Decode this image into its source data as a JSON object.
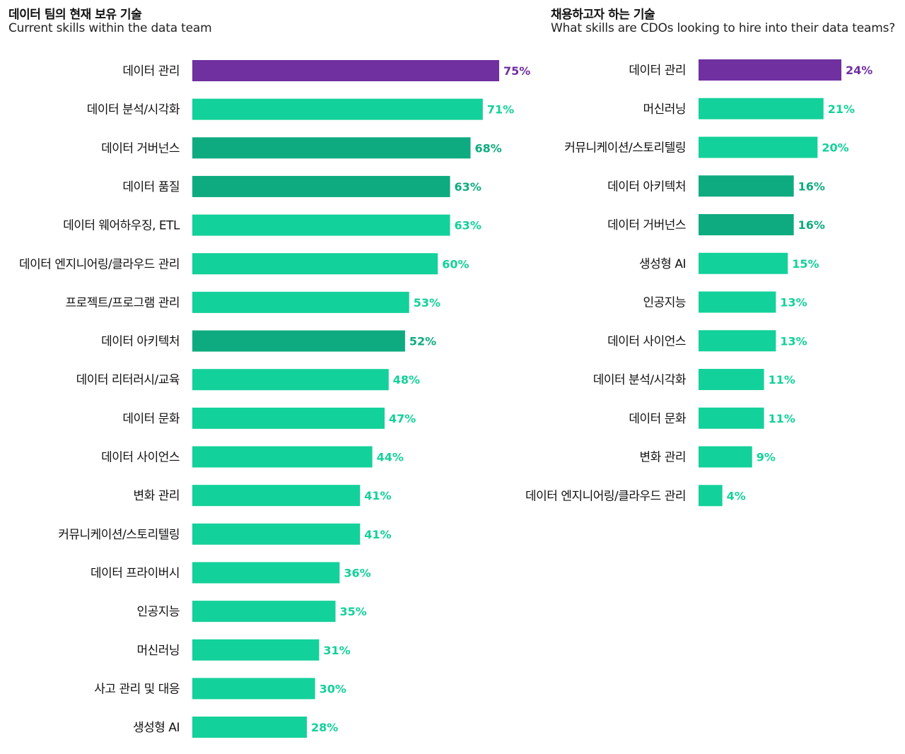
{
  "colors": {
    "highlight": "#7030a0",
    "default": "#13d19a",
    "dark": "#0fab80"
  },
  "left": {
    "title": "데이터 팀의 현재 보유 기술",
    "subtitle": "Current skills within the data team"
  },
  "right": {
    "title": "채용하고자 하는 기술",
    "subtitle": "What skills are CDOs looking to hire into their data teams?"
  },
  "chart_data": [
    {
      "type": "bar",
      "orientation": "horizontal",
      "title": "데이터 팀의 현재 보유 기술",
      "subtitle": "Current skills within the data team",
      "unit": "%",
      "xlim": [
        0,
        75
      ],
      "categories": [
        "데이터 관리",
        "데이터 분석/시각화",
        "데이터 거버넌스",
        "데이터 품질",
        "데이터 웨어하우징, ETL",
        "데이터 엔지니어링/클라우드 관리",
        "프로젝트/프로그램 관리",
        "데이터 아키텍처",
        "데이터 리터러시/교육",
        "데이터 문화",
        "데이터 사이언스",
        "변화 관리",
        "커뮤니케이션/스토리텔링",
        "데이터 프라이버시",
        "인공지능",
        "머신러닝",
        "사고 관리 및 대응",
        "생성형 AI"
      ],
      "values": [
        75,
        71,
        68,
        63,
        63,
        60,
        53,
        52,
        48,
        47,
        44,
        41,
        41,
        36,
        35,
        31,
        30,
        28
      ],
      "labels": [
        "75%",
        "71%",
        "68%",
        "63%",
        "63%",
        "60%",
        "53%",
        "52%",
        "48%",
        "47%",
        "44%",
        "41%",
        "41%",
        "36%",
        "35%",
        "31%",
        "30%",
        "28%"
      ],
      "bar_styles": [
        "highlight",
        "default",
        "dark",
        "dark",
        "default",
        "default",
        "default",
        "dark",
        "default",
        "default",
        "default",
        "default",
        "default",
        "default",
        "default",
        "default",
        "default",
        "default"
      ]
    },
    {
      "type": "bar",
      "orientation": "horizontal",
      "title": "채용하고자 하는 기술",
      "subtitle": "What skills are CDOs looking to hire into their data teams?",
      "unit": "%",
      "xlim": [
        0,
        24
      ],
      "categories": [
        "데이터 관리",
        "머신러닝",
        "커뮤니케이션/스토리텔링",
        "데이터 아키텍처",
        "데이터 거버넌스",
        "생성형 AI",
        "인공지능",
        "데이터 사이언스",
        "데이터 분석/시각화",
        "데이터 문화",
        "변화 관리",
        "데이터 엔지니어링/클라우드 관리"
      ],
      "values": [
        24,
        21,
        20,
        16,
        16,
        15,
        13,
        13,
        11,
        11,
        9,
        4
      ],
      "labels": [
        "24%",
        "21%",
        "20%",
        "16%",
        "16%",
        "15%",
        "13%",
        "13%",
        "11%",
        "11%",
        "9%",
        "4%"
      ],
      "bar_styles": [
        "highlight",
        "default",
        "default",
        "dark",
        "dark",
        "default",
        "default",
        "default",
        "default",
        "default",
        "default",
        "default"
      ]
    }
  ]
}
